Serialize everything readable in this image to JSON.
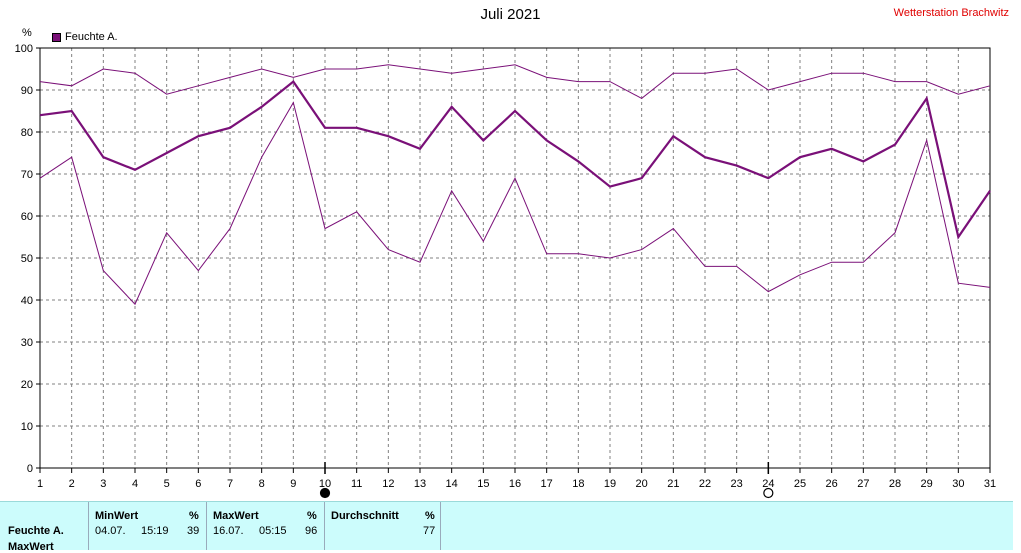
{
  "title": "Juli 2021",
  "station": "Wetterstation Brachwitz",
  "unit": "%",
  "legend_label": "Feuchte A.",
  "colors": {
    "series": "#7a1078",
    "grid": "#808080",
    "panel": "#ccfcfc",
    "station": "#e00000"
  },
  "chart_data": {
    "type": "line",
    "x": [
      1,
      2,
      3,
      4,
      5,
      6,
      7,
      8,
      9,
      10,
      11,
      12,
      13,
      14,
      15,
      16,
      17,
      18,
      19,
      20,
      21,
      22,
      23,
      24,
      25,
      26,
      27,
      28,
      29,
      30,
      31
    ],
    "xlim": [
      1,
      31
    ],
    "ylim": [
      0,
      100
    ],
    "yticks": [
      0,
      10,
      20,
      30,
      40,
      50,
      60,
      70,
      80,
      90,
      100
    ],
    "grid": true,
    "series": [
      {
        "role": "max",
        "values": [
          92,
          91,
          95,
          94,
          89,
          91,
          93,
          95,
          93,
          95,
          95,
          96,
          95,
          94,
          95,
          96,
          93,
          92,
          92,
          88,
          94,
          94,
          95,
          90,
          92,
          94,
          94,
          92,
          92,
          89,
          91
        ]
      },
      {
        "role": "avg",
        "values": [
          84,
          85,
          74,
          71,
          75,
          79,
          81,
          86,
          92,
          81,
          81,
          79,
          76,
          86,
          78,
          85,
          78,
          73,
          67,
          69,
          79,
          74,
          72,
          69,
          74,
          76,
          73,
          77,
          88,
          55,
          66
        ]
      },
      {
        "role": "min",
        "values": [
          69,
          74,
          47,
          39,
          56,
          47,
          57,
          74,
          87,
          57,
          61,
          52,
          49,
          66,
          54,
          69,
          51,
          51,
          50,
          52,
          57,
          48,
          48,
          42,
          46,
          49,
          49,
          56,
          78,
          44,
          43
        ]
      }
    ],
    "markers": [
      {
        "x": 10,
        "type": "filled"
      },
      {
        "x": 24,
        "type": "open"
      }
    ]
  },
  "panel": {
    "row_label": "Feuchte A.",
    "row_label2": "MaxWert",
    "min": {
      "header": "MinWert",
      "unit": "%",
      "date": "04.07.",
      "time": "15:19",
      "value": "39"
    },
    "max": {
      "header": "MaxWert",
      "unit": "%",
      "date": "16.07.",
      "time": "05:15",
      "value": "96"
    },
    "avg": {
      "header": "Durchschnitt",
      "unit": "%",
      "value": "77"
    }
  }
}
